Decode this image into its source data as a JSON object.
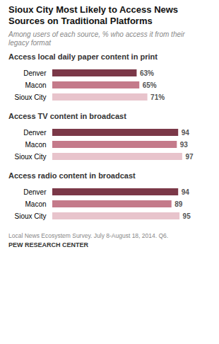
{
  "title": "Sioux City Most Likely to Access News\nSources on Traditional Platforms",
  "subtitle": "Among users of each source, % who access it from their\nlegacy format",
  "annotations": [
    "Local News Ecosystem Survey. July 8-August 18, 2014. Q6.",
    "PEW RESEARCH CENTER"
  ],
  "chart_data": [
    {
      "type": "bar",
      "orientation": "horizontal",
      "title": "Access local daily paper content in print",
      "categories": [
        "Denver",
        "Macon",
        "Sioux City"
      ],
      "values": [
        63,
        65,
        71
      ],
      "value_labels": [
        "63%",
        "65%",
        "71%"
      ],
      "data_labels": true,
      "colors": [
        "#7b3848",
        "#c47a8a",
        "#e8c4cc"
      ],
      "xlim": [
        0,
        115
      ],
      "tick_labels": "y",
      "grid": false
    },
    {
      "type": "bar",
      "orientation": "horizontal",
      "title": "Access TV content in broadcast",
      "categories": [
        "Denver",
        "Macon",
        "Sioux City"
      ],
      "values": [
        94,
        93,
        97
      ],
      "data_labels": true,
      "colors": [
        "#7b3848",
        "#c47a8a",
        "#e8c4cc"
      ],
      "xlim": [
        0,
        115
      ],
      "tick_labels": "y",
      "grid": false
    },
    {
      "type": "bar",
      "orientation": "horizontal",
      "title": "Access radio content in broadcast",
      "categories": [
        "Denver",
        "Macon",
        "Sioux City"
      ],
      "values": [
        94,
        89,
        95
      ],
      "data_labels": true,
      "colors": [
        "#7b3848",
        "#c47a8a",
        "#e8c4cc"
      ],
      "xlim": [
        0,
        115
      ],
      "tick_labels": "y",
      "grid": false
    }
  ]
}
